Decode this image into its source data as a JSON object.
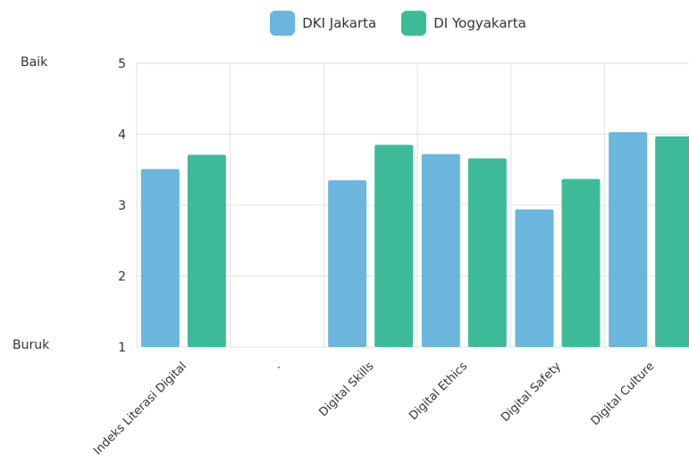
{
  "legend": {
    "items": [
      {
        "label": "DKI Jakarta",
        "color": "#6ab6dc"
      },
      {
        "label": "DI Yogyakarta",
        "color": "#3dbb98"
      }
    ]
  },
  "side_labels": {
    "top": "Baik",
    "bottom": "Buruk"
  },
  "chart_data": {
    "type": "bar",
    "categories": [
      "Indeks Literasi Digital",
      ".",
      "Digital Skills",
      "Digital Ethics",
      "Digital Safety",
      "Digital Culture"
    ],
    "series": [
      {
        "name": "DKI Jakarta",
        "color": "#6ab6dc",
        "values": [
          3.51,
          null,
          3.35,
          3.72,
          2.94,
          4.03
        ]
      },
      {
        "name": "DI Yogyakarta",
        "color": "#3dbb98",
        "values": [
          3.71,
          null,
          3.85,
          3.66,
          3.37,
          3.97
        ]
      }
    ],
    "yticks": [
      "1",
      "2",
      "3",
      "4",
      "5"
    ],
    "ylim": [
      1,
      5
    ],
    "grid": true,
    "legend_position": "top-center"
  }
}
